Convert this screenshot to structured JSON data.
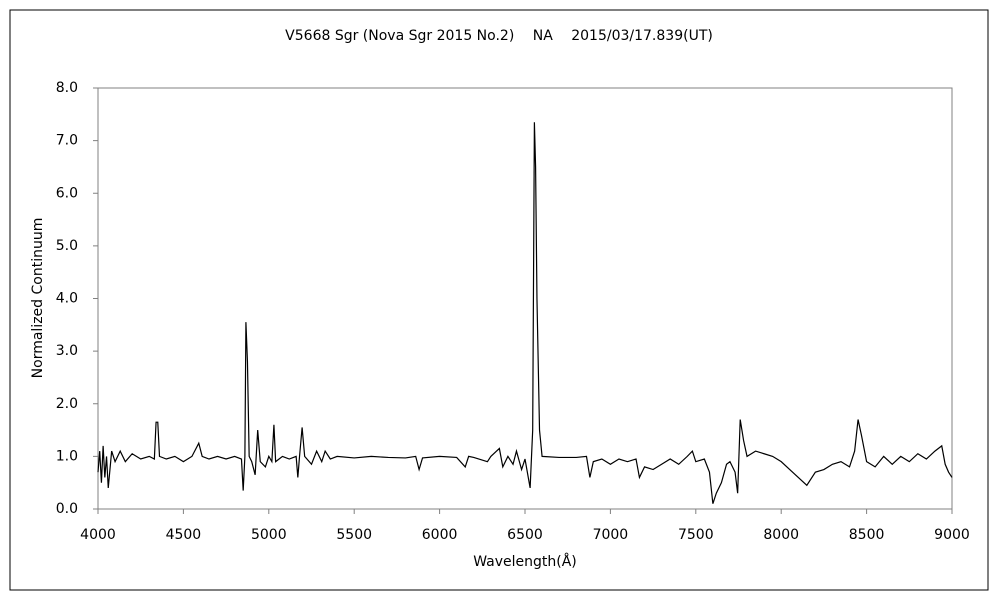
{
  "chart_data": {
    "type": "line",
    "title": "V5668 Sgr (Nova Sgr 2015 No.2)　 NA　 2015/03/17.839(UT)",
    "x_label": "Wavelength(Å)",
    "y_label": "Normalized Continuum",
    "xlim": [
      4000,
      9000
    ],
    "xticks": [
      4000,
      4500,
      5000,
      5500,
      6000,
      6500,
      7000,
      7500,
      8000,
      8500,
      9000
    ],
    "ylim": [
      0,
      8
    ],
    "yticks": [
      {
        "value": 0,
        "label": "0.0"
      },
      {
        "value": 1,
        "label": "1.0"
      },
      {
        "value": 2,
        "label": "2.0"
      },
      {
        "value": 3,
        "label": "3.0"
      },
      {
        "value": 4,
        "label": "4.0"
      },
      {
        "value": 5,
        "label": "5.0"
      },
      {
        "value": 6,
        "label": "6.0"
      },
      {
        "value": 7,
        "label": "7.0"
      },
      {
        "value": 8,
        "label": "8.0"
      }
    ],
    "grid": false,
    "x": [
      4000,
      4010,
      4020,
      4030,
      4040,
      4050,
      4060,
      4080,
      4100,
      4130,
      4160,
      4200,
      4250,
      4300,
      4330,
      4340,
      4350,
      4360,
      4400,
      4450,
      4500,
      4550,
      4590,
      4610,
      4650,
      4700,
      4750,
      4800,
      4840,
      4850,
      4860,
      4866,
      4875,
      4885,
      4900,
      4920,
      4935,
      4950,
      4980,
      5000,
      5018,
      5030,
      5040,
      5080,
      5120,
      5160,
      5170,
      5180,
      5195,
      5210,
      5250,
      5280,
      5310,
      5330,
      5360,
      5400,
      5500,
      5600,
      5700,
      5800,
      5860,
      5880,
      5900,
      6000,
      6100,
      6150,
      6170,
      6200,
      6280,
      6300,
      6350,
      6370,
      6400,
      6430,
      6450,
      6480,
      6500,
      6530,
      6545,
      6555,
      6562,
      6570,
      6585,
      6600,
      6700,
      6800,
      6860,
      6880,
      6900,
      6950,
      7000,
      7050,
      7100,
      7150,
      7170,
      7200,
      7250,
      7300,
      7350,
      7400,
      7450,
      7480,
      7500,
      7550,
      7580,
      7600,
      7620,
      7650,
      7680,
      7700,
      7730,
      7745,
      7760,
      7780,
      7800,
      7850,
      7900,
      7950,
      8000,
      8050,
      8100,
      8150,
      8200,
      8250,
      8300,
      8350,
      8400,
      8430,
      8450,
      8470,
      8500,
      8550,
      8600,
      8650,
      8700,
      8750,
      8800,
      8850,
      8900,
      8940,
      8960,
      8980,
      9000
    ],
    "series": [
      {
        "color": "#000000",
        "values": [
          0.7,
          1.1,
          0.5,
          1.2,
          0.6,
          1.0,
          0.4,
          1.1,
          0.9,
          1.1,
          0.9,
          1.05,
          0.95,
          1.0,
          0.95,
          1.65,
          1.65,
          1.0,
          0.95,
          1.0,
          0.9,
          1.0,
          1.25,
          1.0,
          0.95,
          1.0,
          0.95,
          1.0,
          0.95,
          0.35,
          1.0,
          3.55,
          2.8,
          1.0,
          0.9,
          0.65,
          1.5,
          0.9,
          0.8,
          1.0,
          0.9,
          1.6,
          0.9,
          1.0,
          0.95,
          1.0,
          0.6,
          1.0,
          1.55,
          1.0,
          0.85,
          1.1,
          0.9,
          1.1,
          0.95,
          1.0,
          0.97,
          1.0,
          0.98,
          0.97,
          1.0,
          0.75,
          0.97,
          1.0,
          0.98,
          0.8,
          1.0,
          0.98,
          0.9,
          1.0,
          1.15,
          0.8,
          1.0,
          0.85,
          1.1,
          0.75,
          0.95,
          0.4,
          1.5,
          7.35,
          6.5,
          4.0,
          1.5,
          1.0,
          0.98,
          0.98,
          1.0,
          0.6,
          0.9,
          0.95,
          0.85,
          0.95,
          0.9,
          0.95,
          0.6,
          0.8,
          0.75,
          0.85,
          0.95,
          0.85,
          1.0,
          1.1,
          0.9,
          0.95,
          0.7,
          0.1,
          0.3,
          0.5,
          0.85,
          0.9,
          0.7,
          0.3,
          1.7,
          1.3,
          1.0,
          1.1,
          1.05,
          1.0,
          0.9,
          0.75,
          0.6,
          0.45,
          0.7,
          0.75,
          0.85,
          0.9,
          0.8,
          1.1,
          1.7,
          1.4,
          0.9,
          0.8,
          1.0,
          0.85,
          1.0,
          0.9,
          1.05,
          0.95,
          1.1,
          1.2,
          0.85,
          0.7,
          0.6
        ]
      }
    ]
  }
}
